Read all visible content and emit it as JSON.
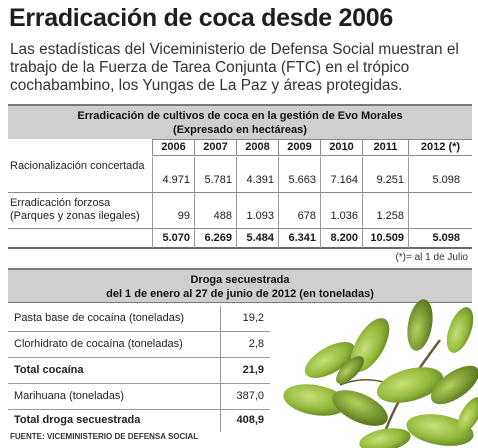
{
  "title": "Erradicación de coca desde 2006",
  "intro": "Las estadísticas del Viceministerio de Defensa Social muestran el trabajo de la Fuerza de Tarea Conjunta (FTC) en el trópico cochabambino,  los Yungas de La Paz y áreas protegidas.",
  "table1": {
    "title_line1": "Erradicación de cultivos de coca en la gestión de Evo Morales",
    "title_line2": "(Expresado en hectáreas)",
    "columns": [
      "2006",
      "2007",
      "2008",
      "2009",
      "2010",
      "2011",
      "2012 (*)"
    ],
    "rows": [
      {
        "label": "Racionalización concertada",
        "values": [
          "4.971",
          "5.781",
          "4.391",
          "5.663",
          "7.164",
          "9.251",
          "5.098"
        ]
      },
      {
        "label": "Erradicación forzosa (Parques y zonas ilegales)",
        "values": [
          "99",
          "488",
          "1.093",
          "678",
          "1.036",
          "1.258",
          ""
        ]
      },
      {
        "label": "",
        "values": [
          "5.070",
          "6.269",
          "5.484",
          "6.341",
          "8.200",
          "10.509",
          "5.098"
        ]
      }
    ],
    "note": "(*)= al 1 de Julio"
  },
  "table2": {
    "title_line1": "Droga secuestrada",
    "title_line2": "del 1 de enero al 27 de junio de 2012 (en toneladas)",
    "rows": [
      {
        "label": "Pasta base de cocaína (toneladas)",
        "value": "19,2"
      },
      {
        "label": "Clorhidrato de cocaína (toneladas)",
        "value": "2,8"
      },
      {
        "label": "Total cocaína",
        "value": "21,9"
      },
      {
        "label": "Marihuana (toneladas)",
        "value": "387,0"
      },
      {
        "label": "Total droga secuestrada",
        "value": "408,9"
      }
    ]
  },
  "source": "FUENTE: VICEMINISTERIO DE DEFENSA SOCIAL"
}
